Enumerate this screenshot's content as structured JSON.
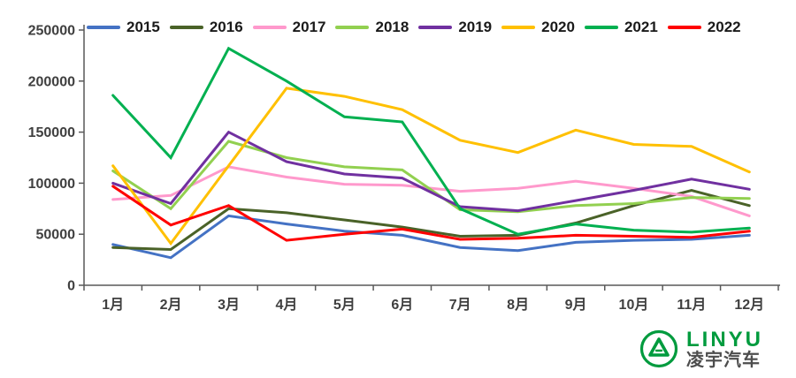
{
  "chart_data": {
    "type": "line",
    "title": "",
    "xlabel": "",
    "ylabel": "",
    "categories": [
      "1月",
      "2月",
      "3月",
      "4月",
      "5月",
      "6月",
      "7月",
      "8月",
      "9月",
      "10月",
      "11月",
      "12月"
    ],
    "series": [
      {
        "name": "2015",
        "color": "#4472C4",
        "values": [
          40000,
          27000,
          68000,
          60000,
          53000,
          49000,
          37000,
          34000,
          42000,
          44000,
          45000,
          49000
        ]
      },
      {
        "name": "2016",
        "color": "#4A6228",
        "values": [
          37000,
          35000,
          75000,
          71000,
          64000,
          57000,
          48000,
          49000,
          61000,
          78000,
          93000,
          78000
        ]
      },
      {
        "name": "2017",
        "color": "#FF99CC",
        "values": [
          84000,
          88000,
          116000,
          106000,
          99000,
          98000,
          92000,
          95000,
          102000,
          95000,
          87000,
          68000
        ]
      },
      {
        "name": "2018",
        "color": "#92D050",
        "values": [
          112000,
          75000,
          141000,
          125000,
          116000,
          113000,
          74000,
          72000,
          78000,
          80000,
          86000,
          85000
        ]
      },
      {
        "name": "2019",
        "color": "#7030A0",
        "values": [
          100000,
          80000,
          150000,
          121000,
          109000,
          105000,
          77000,
          73000,
          83000,
          93000,
          104000,
          94000
        ]
      },
      {
        "name": "2020",
        "color": "#FFC000",
        "values": [
          117000,
          41000,
          117000,
          193000,
          185000,
          172000,
          142000,
          130000,
          152000,
          138000,
          136000,
          111000
        ]
      },
      {
        "name": "2021",
        "color": "#00B050",
        "values": [
          186000,
          125000,
          232000,
          200000,
          165000,
          160000,
          75000,
          50000,
          60000,
          54000,
          52000,
          56000
        ]
      },
      {
        "name": "2022",
        "color": "#FF0000",
        "values": [
          97000,
          59000,
          78000,
          44000,
          50000,
          55000,
          45000,
          46000,
          49000,
          48000,
          47000,
          53000
        ]
      }
    ],
    "ylim": [
      0,
      250000
    ],
    "ytick_step": 50000,
    "ytick_labels": [
      "0",
      "50000",
      "100000",
      "150000",
      "200000",
      "250000"
    ],
    "legend_position": "top",
    "grid": false,
    "axis_color": "#595959",
    "label_color": "#3F3F3F"
  },
  "logo": {
    "wordmark": "LINYU",
    "chinese_name": "凌宇汽车",
    "brand_green": "#009B3E",
    "text_dark": "#4D4D4D"
  }
}
